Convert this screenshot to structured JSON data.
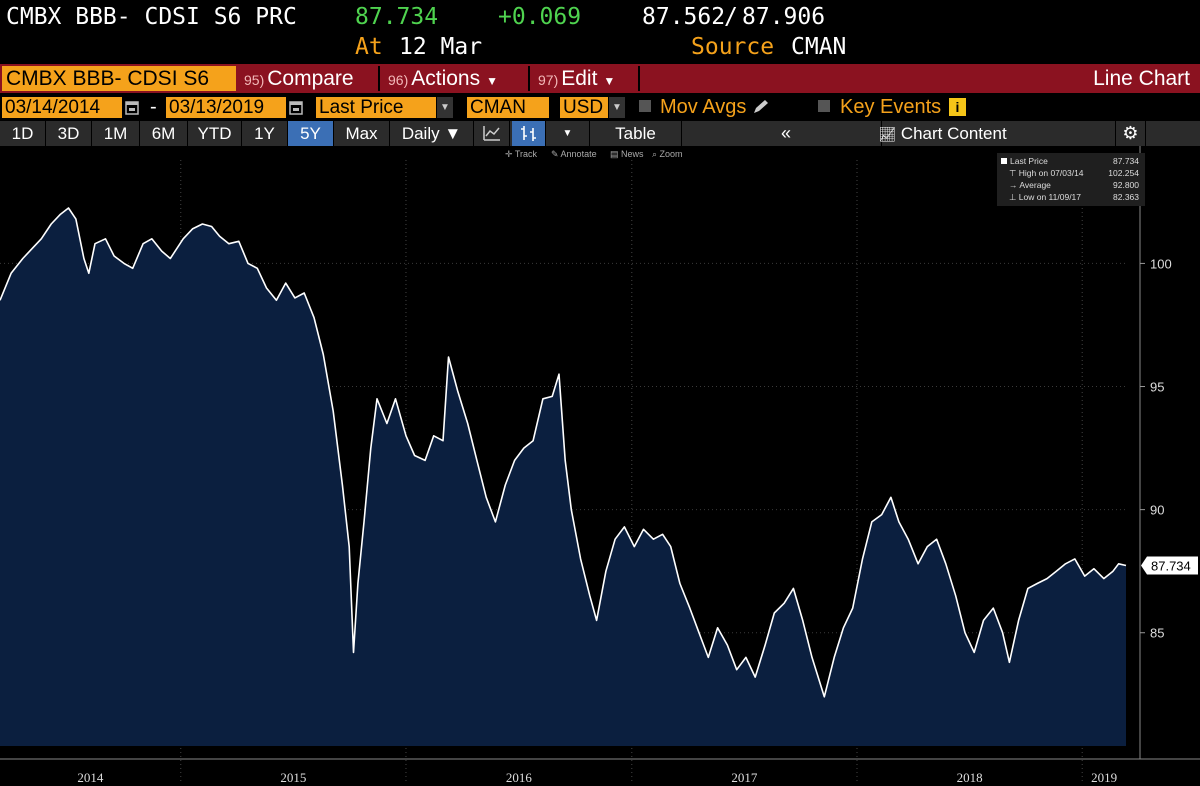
{
  "header": {
    "ticker": "CMBX BBB- CDSI S6 PRC",
    "last": "87.734",
    "change": "+0.069",
    "bid": "87.562",
    "sep": "/",
    "ask": "87.906",
    "at_label": "At",
    "at_date": "12 Mar",
    "source_label": "Source",
    "source_value": "CMAN"
  },
  "menu_bar": {
    "ticker_field": "CMBX BBB- CDSI S6",
    "compare_num": "95)",
    "compare_label": "Compare",
    "actions_num": "96)",
    "actions_label": "Actions",
    "edit_num": "97)",
    "edit_label": "Edit",
    "view_label": "Line Chart",
    "colors": {
      "bar": "#8b1220",
      "field": "#f5a21b"
    }
  },
  "settings_bar": {
    "start_date": "03/14/2014",
    "dash": "-",
    "end_date": "03/13/2019",
    "field": "Last Price",
    "source": "CMAN",
    "currency": "USD",
    "mov_avgs": "Mov Avgs",
    "key_events": "Key Events"
  },
  "range_bar": {
    "ranges": [
      "1D",
      "3D",
      "1M",
      "6M",
      "YTD",
      "1Y",
      "5Y",
      "Max"
    ],
    "active": "5Y",
    "frequency": "Daily",
    "table_label": "Table",
    "chart_content_label": "Chart Content",
    "active_color": "#3b6fb5"
  },
  "chart_toolbar": [
    "Track",
    "Annotate",
    "News",
    "Zoom"
  ],
  "legend": {
    "rows": [
      {
        "label": "Last Price",
        "value": "87.734"
      },
      {
        "label": "High on 07/03/14",
        "value": "102.254"
      },
      {
        "label": "Average",
        "value": "92.800"
      },
      {
        "label": "Low on 11/09/17",
        "value": "82.363"
      }
    ]
  },
  "chart_data": {
    "type": "area",
    "series": [
      {
        "name": "Last Price",
        "color": "#ffffff",
        "fill": "#0b1f3f",
        "points": [
          [
            "2014-03-14",
            98.5
          ],
          [
            "2014-04-01",
            99.6
          ],
          [
            "2014-04-20",
            100.2
          ],
          [
            "2014-05-05",
            100.6
          ],
          [
            "2014-05-20",
            101.0
          ],
          [
            "2014-06-05",
            101.6
          ],
          [
            "2014-06-20",
            102.0
          ],
          [
            "2014-07-03",
            102.25
          ],
          [
            "2014-07-15",
            101.8
          ],
          [
            "2014-07-28",
            100.2
          ],
          [
            "2014-08-05",
            99.6
          ],
          [
            "2014-08-15",
            100.8
          ],
          [
            "2014-09-01",
            101.0
          ],
          [
            "2014-09-15",
            100.3
          ],
          [
            "2014-10-01",
            100.0
          ],
          [
            "2014-10-15",
            99.8
          ],
          [
            "2014-11-01",
            100.8
          ],
          [
            "2014-11-15",
            101.0
          ],
          [
            "2014-12-01",
            100.5
          ],
          [
            "2014-12-15",
            100.2
          ],
          [
            "2015-01-05",
            101.0
          ],
          [
            "2015-01-20",
            101.4
          ],
          [
            "2015-02-05",
            101.6
          ],
          [
            "2015-02-20",
            101.5
          ],
          [
            "2015-03-05",
            101.1
          ],
          [
            "2015-03-20",
            100.8
          ],
          [
            "2015-04-05",
            100.9
          ],
          [
            "2015-04-20",
            100.0
          ],
          [
            "2015-05-05",
            99.8
          ],
          [
            "2015-05-20",
            99.0
          ],
          [
            "2015-06-05",
            98.5
          ],
          [
            "2015-06-20",
            99.2
          ],
          [
            "2015-07-05",
            98.6
          ],
          [
            "2015-07-20",
            98.8
          ],
          [
            "2015-08-05",
            97.8
          ],
          [
            "2015-08-20",
            96.3
          ],
          [
            "2015-09-05",
            94.0
          ],
          [
            "2015-09-20",
            91.0
          ],
          [
            "2015-10-01",
            88.5
          ],
          [
            "2015-10-08",
            84.2
          ],
          [
            "2015-10-15",
            87.0
          ],
          [
            "2015-10-25",
            89.5
          ],
          [
            "2015-11-05",
            92.5
          ],
          [
            "2015-11-15",
            94.5
          ],
          [
            "2015-12-01",
            93.5
          ],
          [
            "2015-12-15",
            94.5
          ],
          [
            "2016-01-01",
            93.0
          ],
          [
            "2016-01-15",
            92.2
          ],
          [
            "2016-02-01",
            92.0
          ],
          [
            "2016-02-15",
            93.0
          ],
          [
            "2016-03-01",
            92.8
          ],
          [
            "2016-03-10",
            96.2
          ],
          [
            "2016-03-25",
            94.8
          ],
          [
            "2016-04-10",
            93.5
          ],
          [
            "2016-04-25",
            92.0
          ],
          [
            "2016-05-10",
            90.5
          ],
          [
            "2016-05-25",
            89.5
          ],
          [
            "2016-06-10",
            91.0
          ],
          [
            "2016-06-25",
            92.0
          ],
          [
            "2016-07-10",
            92.5
          ],
          [
            "2016-07-25",
            92.8
          ],
          [
            "2016-08-10",
            94.5
          ],
          [
            "2016-08-25",
            94.6
          ],
          [
            "2016-09-05",
            95.5
          ],
          [
            "2016-09-15",
            92.0
          ],
          [
            "2016-09-25",
            90.0
          ],
          [
            "2016-10-10",
            88.0
          ],
          [
            "2016-10-25",
            86.5
          ],
          [
            "2016-11-05",
            85.5
          ],
          [
            "2016-11-20",
            87.5
          ],
          [
            "2016-12-05",
            88.8
          ],
          [
            "2016-12-20",
            89.3
          ],
          [
            "2017-01-05",
            88.5
          ],
          [
            "2017-01-20",
            89.2
          ],
          [
            "2017-02-05",
            88.8
          ],
          [
            "2017-02-20",
            89.0
          ],
          [
            "2017-03-05",
            88.5
          ],
          [
            "2017-03-20",
            87.0
          ],
          [
            "2017-04-05",
            86.0
          ],
          [
            "2017-04-20",
            85.0
          ],
          [
            "2017-05-05",
            84.0
          ],
          [
            "2017-05-20",
            85.2
          ],
          [
            "2017-06-05",
            84.5
          ],
          [
            "2017-06-20",
            83.5
          ],
          [
            "2017-07-05",
            84.0
          ],
          [
            "2017-07-20",
            83.2
          ],
          [
            "2017-08-05",
            84.5
          ],
          [
            "2017-08-20",
            85.8
          ],
          [
            "2017-09-05",
            86.2
          ],
          [
            "2017-09-20",
            86.8
          ],
          [
            "2017-10-05",
            85.5
          ],
          [
            "2017-10-20",
            84.0
          ],
          [
            "2017-11-09",
            82.4
          ],
          [
            "2017-11-25",
            84.0
          ],
          [
            "2017-12-10",
            85.2
          ],
          [
            "2017-12-25",
            86.0
          ],
          [
            "2018-01-10",
            88.0
          ],
          [
            "2018-01-25",
            89.5
          ],
          [
            "2018-02-10",
            89.8
          ],
          [
            "2018-02-25",
            90.5
          ],
          [
            "2018-03-10",
            89.5
          ],
          [
            "2018-03-25",
            88.8
          ],
          [
            "2018-04-10",
            87.8
          ],
          [
            "2018-04-25",
            88.5
          ],
          [
            "2018-05-10",
            88.8
          ],
          [
            "2018-05-25",
            87.8
          ],
          [
            "2018-06-10",
            86.5
          ],
          [
            "2018-06-25",
            85.0
          ],
          [
            "2018-07-10",
            84.2
          ],
          [
            "2018-07-25",
            85.5
          ],
          [
            "2018-08-10",
            86.0
          ],
          [
            "2018-08-25",
            85.0
          ],
          [
            "2018-09-05",
            83.8
          ],
          [
            "2018-09-20",
            85.5
          ],
          [
            "2018-10-05",
            86.8
          ],
          [
            "2018-10-20",
            87.0
          ],
          [
            "2018-11-05",
            87.2
          ],
          [
            "2018-11-20",
            87.5
          ],
          [
            "2018-12-05",
            87.8
          ],
          [
            "2018-12-20",
            88.0
          ],
          [
            "2019-01-05",
            87.3
          ],
          [
            "2019-01-20",
            87.6
          ],
          [
            "2019-02-05",
            87.2
          ],
          [
            "2019-02-20",
            87.5
          ],
          [
            "2019-03-01",
            87.8
          ],
          [
            "2019-03-13",
            87.73
          ]
        ]
      }
    ],
    "y_axis": {
      "ticks": [
        85,
        90,
        95,
        100
      ],
      "side": "right",
      "ylim": [
        80.4,
        104.2
      ]
    },
    "x_axis": {
      "ticks": [
        "2014",
        "2015",
        "2016",
        "2017",
        "2018",
        "2019"
      ],
      "xlim": [
        "2014-03-14",
        "2019-03-13"
      ]
    },
    "last_value_label": "87.734",
    "grid": true
  }
}
